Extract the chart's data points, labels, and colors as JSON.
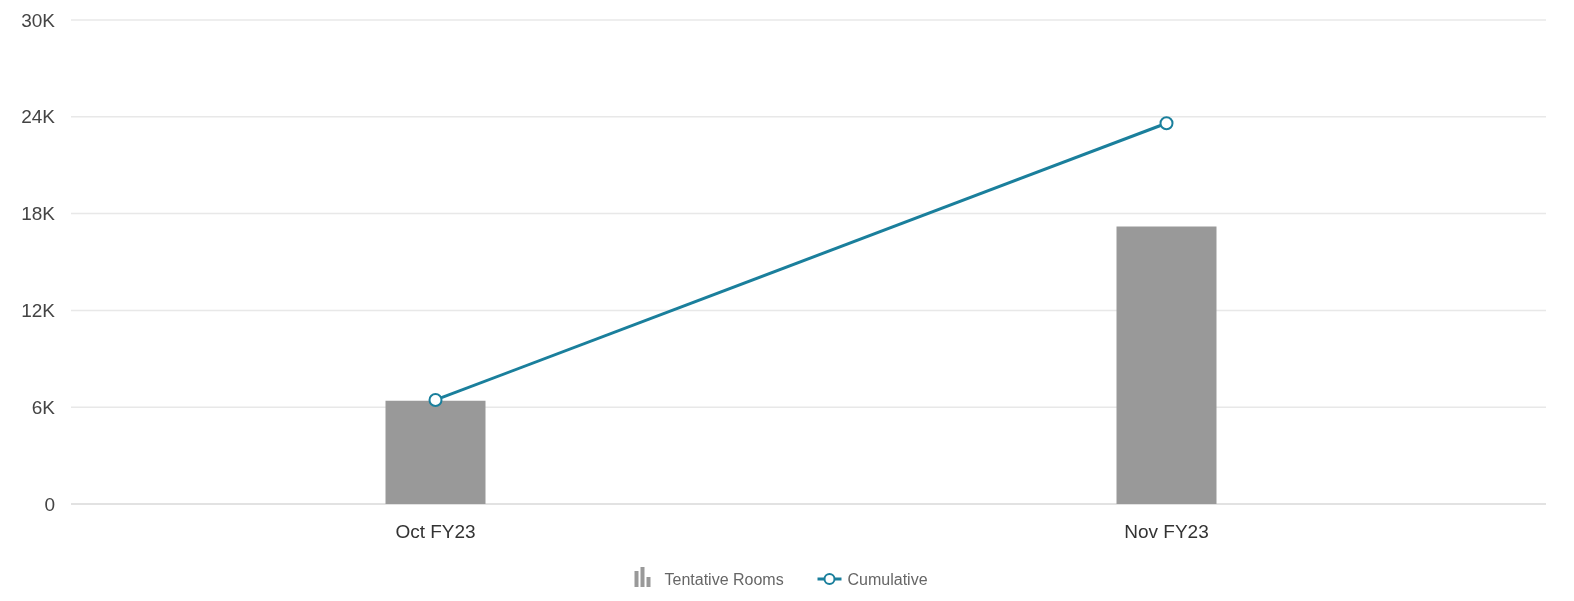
{
  "chart_data": {
    "type": "bar",
    "categories": [
      "Oct FY23",
      "Nov FY23"
    ],
    "series": [
      {
        "name": "Tentative Rooms",
        "color": "#999999",
        "values": [
          6400,
          17200
        ]
      },
      {
        "name": "Cumulative",
        "type": "line",
        "color": "#1a7f9c",
        "values": [
          6450,
          23600
        ]
      }
    ],
    "ylim": [
      0,
      30000
    ],
    "yticks": [
      {
        "value": 0,
        "label": "0"
      },
      {
        "value": 6000,
        "label": "6K"
      },
      {
        "value": 12000,
        "label": "12K"
      },
      {
        "value": 18000,
        "label": "18K"
      },
      {
        "value": 24000,
        "label": "24K"
      },
      {
        "value": 30000,
        "label": "30K"
      }
    ],
    "grid": "y",
    "legend": "bottom",
    "marker": "circle"
  }
}
